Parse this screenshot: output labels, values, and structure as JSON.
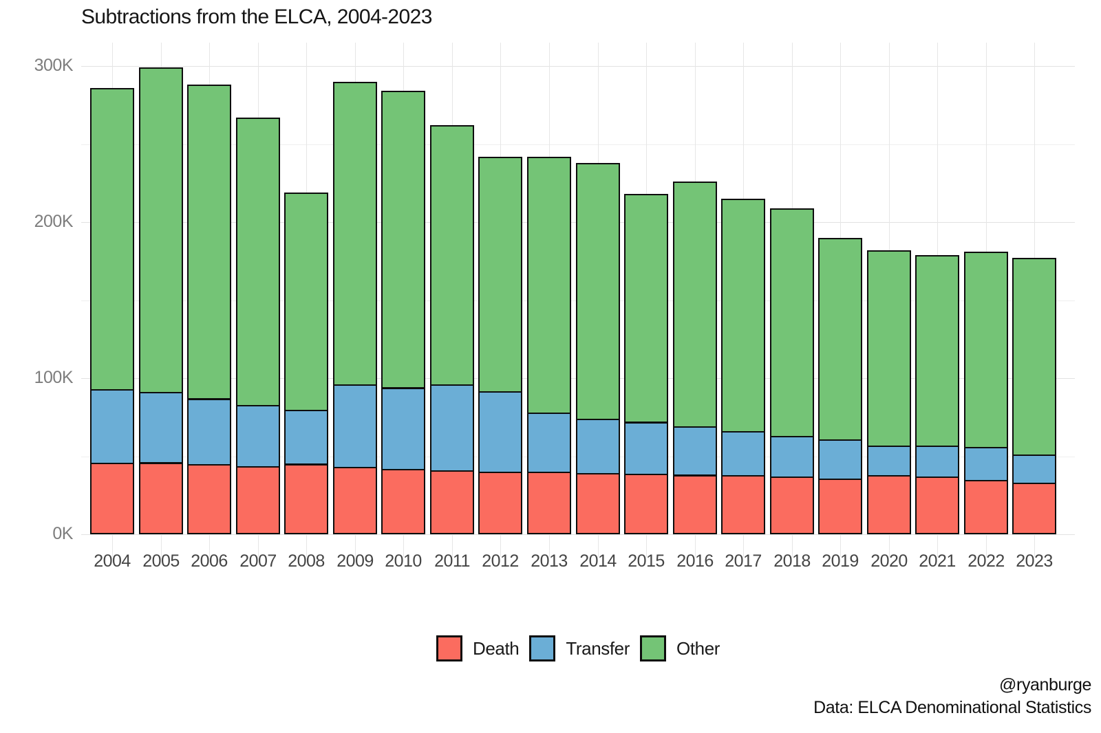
{
  "title": "Subtractions from the ELCA, 2004-2023",
  "y_axis": {
    "tick_labels": [
      "0K",
      "100K",
      "200K",
      "300K"
    ],
    "tick_values": [
      0,
      100,
      200,
      300
    ],
    "minor_tick_values": [
      50,
      150,
      250
    ]
  },
  "legend": {
    "items": [
      {
        "label": "Death",
        "color": "#fb6c5f"
      },
      {
        "label": "Transfer",
        "color": "#6baed6"
      },
      {
        "label": "Other",
        "color": "#74c476"
      }
    ]
  },
  "footer": {
    "handle": "@ryanburge",
    "source": "Data: ELCA Denominational Statistics"
  },
  "chart_data": {
    "type": "bar",
    "stacked": true,
    "title": "Subtractions from the ELCA, 2004-2023",
    "units": "thousands of members",
    "xlabel": "",
    "ylabel": "",
    "ylim": [
      0,
      315
    ],
    "grid": true,
    "legend_position": "bottom",
    "categories": [
      "2004",
      "2005",
      "2006",
      "2007",
      "2008",
      "2009",
      "2010",
      "2011",
      "2012",
      "2013",
      "2014",
      "2015",
      "2016",
      "2017",
      "2018",
      "2019",
      "2020",
      "2021",
      "2022",
      "2023"
    ],
    "series": [
      {
        "name": "Death",
        "color": "#fb6c5f",
        "values": [
          46,
          46,
          45,
          44,
          45,
          43,
          42,
          41,
          40,
          40,
          39,
          39,
          38,
          38,
          37,
          36,
          38,
          37,
          35,
          33
        ]
      },
      {
        "name": "Transfer",
        "color": "#6baed6",
        "values": [
          47,
          45,
          42,
          39,
          35,
          53,
          52,
          55,
          52,
          38,
          35,
          33,
          31,
          28,
          26,
          25,
          19,
          20,
          21,
          18
        ]
      },
      {
        "name": "Other",
        "color": "#74c476",
        "values": [
          193,
          208,
          201,
          184,
          139,
          194,
          190,
          166,
          150,
          164,
          164,
          146,
          157,
          149,
          146,
          129,
          125,
          122,
          125,
          126
        ]
      }
    ],
    "totals": [
      286,
      299,
      288,
      267,
      219,
      290,
      284,
      262,
      242,
      242,
      238,
      218,
      226,
      215,
      209,
      190,
      182,
      179,
      181,
      177
    ]
  }
}
